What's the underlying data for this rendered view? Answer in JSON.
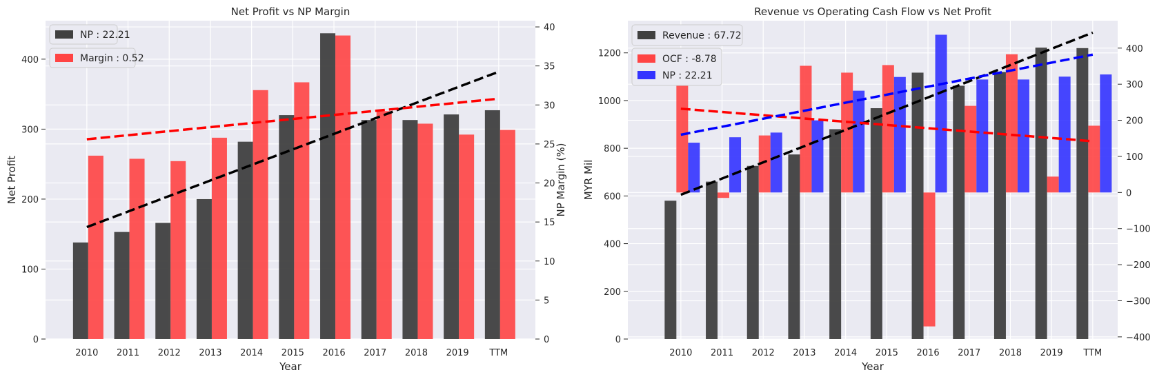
{
  "chart_data": [
    {
      "type": "bar",
      "title": "Net Profit vs NP Margin",
      "xlabel": "Year",
      "ylabel": "Net Profit",
      "ylabel_right": "NP Margin (%)",
      "categories": [
        "2010",
        "2011",
        "2012",
        "2013",
        "2014",
        "2015",
        "2016",
        "2017",
        "2018",
        "2019",
        "TTM"
      ],
      "ylim": [
        0,
        455
      ],
      "ylim_right": [
        0,
        40.8
      ],
      "yticks": [
        0,
        100,
        200,
        300,
        400
      ],
      "yticks_right": [
        0,
        5,
        10,
        15,
        20,
        25,
        30,
        35,
        40
      ],
      "legend_position": "top-left",
      "series": [
        {
          "name": "NP : 22.21",
          "axis": "left",
          "color": "#404040",
          "values": [
            138,
            153,
            166,
            200,
            282,
            320,
            437,
            313,
            313,
            321,
            327
          ]
        },
        {
          "name": "Margin : 0.52",
          "axis": "right",
          "color": "#ff4444",
          "values": [
            23.5,
            23.1,
            22.8,
            25.8,
            31.9,
            32.9,
            38.9,
            29.2,
            27.6,
            26.2,
            26.8
          ]
        }
      ],
      "trendlines": [
        {
          "axis": "left",
          "color": "#000000",
          "x": [
            "2010",
            "TTM"
          ],
          "y": [
            160,
            382
          ]
        },
        {
          "axis": "right",
          "color": "#ff0000",
          "x": [
            "2010",
            "TTM"
          ],
          "y": [
            25.6,
            30.8
          ]
        }
      ]
    },
    {
      "type": "bar",
      "title": "Revenue vs Operating Cash Flow vs Net Profit",
      "xlabel": "Year",
      "ylabel": "MYR Mil",
      "categories": [
        "2010",
        "2011",
        "2012",
        "2013",
        "2014",
        "2015",
        "2016",
        "2017",
        "2018",
        "2019",
        "TTM"
      ],
      "ylim": [
        0,
        1335
      ],
      "ylim_right": [
        -406,
        476
      ],
      "yticks": [
        0,
        200,
        400,
        600,
        800,
        1000,
        1200
      ],
      "yticks_right": [
        -400,
        -300,
        -200,
        -100,
        0,
        100,
        200,
        300,
        400
      ],
      "legend_position": "top-left",
      "series": [
        {
          "name": "Revenue : 67.72",
          "axis": "left",
          "color": "#404040",
          "values": [
            580,
            660,
            726,
            774,
            880,
            968,
            1117,
            1062,
            1120,
            1222,
            1220
          ]
        },
        {
          "name": "OCF : -8.78",
          "axis": "right",
          "color": "#ff4444",
          "values": [
            376,
            -15,
            158,
            351,
            332,
            353,
            -371,
            240,
            383,
            44,
            185
          ]
        },
        {
          "name": "NP : 22.21",
          "axis": "right",
          "color": "#3333ff",
          "values": [
            138,
            153,
            166,
            200,
            282,
            320,
            437,
            313,
            313,
            321,
            327
          ]
        }
      ],
      "trendlines": [
        {
          "axis": "left",
          "color": "#000000",
          "x": [
            "2010",
            "TTM"
          ],
          "y": [
            605,
            1285
          ]
        },
        {
          "axis": "right",
          "color": "#ff0000",
          "x": [
            "2010",
            "TTM"
          ],
          "y": [
            232,
            142
          ]
        },
        {
          "axis": "right",
          "color": "#0000ff",
          "x": [
            "2010",
            "TTM"
          ],
          "y": [
            160,
            382
          ]
        }
      ]
    }
  ]
}
